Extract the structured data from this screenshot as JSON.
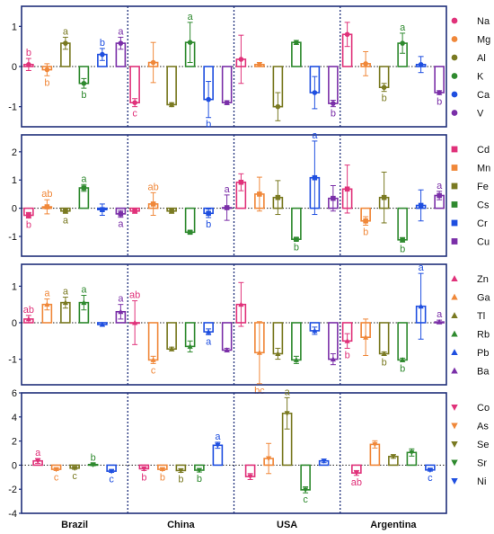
{
  "chart_data": [
    {
      "type": "bar",
      "categories": [
        "Brazil",
        "China",
        "USA",
        "Argentina"
      ],
      "ylim": [
        -1.5,
        1.5
      ],
      "yticks": [
        -1,
        0,
        1
      ],
      "legend": "right",
      "series": [
        {
          "name": "Na",
          "color": "#e0327a",
          "marker": "circle",
          "values": [
            0.05,
            -0.9,
            0.18,
            0.8
          ],
          "errors": [
            0.15,
            0.1,
            0.6,
            0.3
          ],
          "letters": [
            "b",
            "c",
            "",
            ""
          ]
        },
        {
          "name": "Mg",
          "color": "#f0883a",
          "marker": "circle",
          "values": [
            -0.08,
            0.1,
            0.05,
            0.07
          ],
          "errors": [
            0.15,
            0.5,
            0.05,
            0.3
          ],
          "letters": [
            "b",
            "",
            "",
            ""
          ]
        },
        {
          "name": "Al",
          "color": "#7a7a22",
          "marker": "circle",
          "values": [
            0.58,
            -0.95,
            -1.0,
            -0.52
          ],
          "errors": [
            0.15,
            0.05,
            0.35,
            0.1
          ],
          "letters": [
            "a",
            "",
            "",
            "b"
          ]
        },
        {
          "name": "K",
          "color": "#2f8a2f",
          "marker": "circle",
          "values": [
            -0.42,
            0.6,
            0.6,
            0.58
          ],
          "errors": [
            0.12,
            0.5,
            0.05,
            0.25
          ],
          "letters": [
            "b",
            "a",
            "",
            "a"
          ]
        },
        {
          "name": "Ca",
          "color": "#1f4fe0",
          "marker": "circle",
          "values": [
            0.3,
            -0.82,
            -0.65,
            0.05
          ],
          "errors": [
            0.15,
            0.45,
            0.4,
            0.2
          ],
          "letters": [
            "b",
            "b",
            "",
            ""
          ]
        },
        {
          "name": "V",
          "color": "#7a2fa8",
          "marker": "circle",
          "values": [
            0.58,
            -0.9,
            -0.92,
            -0.65
          ],
          "errors": [
            0.15,
            0.05,
            0.08,
            0.05
          ],
          "letters": [
            "a",
            "",
            "b",
            "b"
          ]
        }
      ]
    },
    {
      "type": "bar",
      "categories": [
        "Brazil",
        "China",
        "USA",
        "Argentina"
      ],
      "ylim": [
        -1.7,
        2.6
      ],
      "yticks": [
        -1,
        0,
        1,
        2
      ],
      "legend": "right",
      "series": [
        {
          "name": "Cd",
          "color": "#e0327a",
          "marker": "square",
          "values": [
            -0.25,
            -0.1,
            0.92,
            0.68
          ],
          "errors": [
            0.1,
            0.08,
            0.3,
            0.85
          ],
          "letters": [
            "b",
            "",
            "",
            ""
          ]
        },
        {
          "name": "Mn",
          "color": "#f0883a",
          "marker": "square",
          "values": [
            0.05,
            0.15,
            0.5,
            -0.45
          ],
          "errors": [
            0.25,
            0.4,
            0.6,
            0.15
          ],
          "letters": [
            "ab",
            "ab",
            "",
            "b"
          ]
        },
        {
          "name": "Fe",
          "color": "#7a7a22",
          "marker": "square",
          "values": [
            -0.1,
            -0.1,
            0.38,
            0.38
          ],
          "errors": [
            0.08,
            0.08,
            0.6,
            0.9
          ],
          "letters": [
            "a",
            "",
            "",
            ""
          ]
        },
        {
          "name": "Cs",
          "color": "#2f8a2f",
          "marker": "square",
          "values": [
            0.72,
            -0.85,
            -1.1,
            -1.12
          ],
          "errors": [
            0.12,
            0.05,
            0.05,
            0.08
          ],
          "letters": [
            "a",
            "",
            "b",
            "b"
          ]
        },
        {
          "name": "Cr",
          "color": "#1f4fe0",
          "marker": "square",
          "values": [
            -0.05,
            -0.18,
            1.08,
            0.1
          ],
          "errors": [
            0.2,
            0.15,
            1.3,
            0.55
          ],
          "letters": [
            "",
            "b",
            "a",
            ""
          ]
        },
        {
          "name": "Cu",
          "color": "#7a2fa8",
          "marker": "square",
          "values": [
            -0.2,
            0.02,
            0.35,
            0.45
          ],
          "errors": [
            0.12,
            0.45,
            0.45,
            0.15
          ],
          "letters": [
            "a",
            "a",
            "",
            "a"
          ]
        }
      ]
    },
    {
      "type": "bar",
      "categories": [
        "Brazil",
        "China",
        "USA",
        "Argentina"
      ],
      "ylim": [
        -1.7,
        1.6
      ],
      "yticks": [
        -1,
        0,
        1
      ],
      "legend": "right",
      "series": [
        {
          "name": "Zn",
          "color": "#e0327a",
          "marker": "triangle-up",
          "values": [
            0.1,
            0.0,
            0.5,
            -0.5
          ],
          "errors": [
            0.1,
            0.6,
            0.6,
            0.2
          ],
          "letters": [
            "ab",
            "ab",
            "",
            "b"
          ]
        },
        {
          "name": "Ga",
          "color": "#f0883a",
          "marker": "triangle-up",
          "values": [
            0.5,
            -1.02,
            -0.82,
            -0.4
          ],
          "errors": [
            0.15,
            0.1,
            0.85,
            0.5
          ],
          "letters": [
            "a",
            "c",
            "bc",
            ""
          ]
        },
        {
          "name": "Tl",
          "color": "#7a7a22",
          "marker": "triangle-up",
          "values": [
            0.55,
            -0.72,
            -0.85,
            -0.85
          ],
          "errors": [
            0.15,
            0.05,
            0.15,
            0.05
          ],
          "letters": [
            "a",
            "",
            "",
            "b"
          ]
        },
        {
          "name": "Rb",
          "color": "#2f8a2f",
          "marker": "triangle-up",
          "values": [
            0.55,
            -0.65,
            -1.02,
            -1.02
          ],
          "errors": [
            0.2,
            0.15,
            0.1,
            0.05
          ],
          "letters": [
            "a",
            "",
            "",
            "b"
          ]
        },
        {
          "name": "Pb",
          "color": "#1f4fe0",
          "marker": "triangle-up",
          "values": [
            -0.05,
            -0.25,
            -0.22,
            0.45
          ],
          "errors": [
            0.05,
            0.08,
            0.1,
            0.9
          ],
          "letters": [
            "",
            "a",
            "",
            "a"
          ]
        },
        {
          "name": "Ba",
          "color": "#7a2fa8",
          "marker": "triangle-up",
          "values": [
            0.3,
            -0.75,
            -1.0,
            0.02
          ],
          "errors": [
            0.2,
            0.05,
            0.15,
            0.05
          ],
          "letters": [
            "a",
            "",
            "",
            "a"
          ]
        }
      ]
    },
    {
      "type": "bar",
      "categories": [
        "Brazil",
        "China",
        "USA",
        "Argentina"
      ],
      "ylim": [
        -4,
        6
      ],
      "yticks": [
        -4,
        -2,
        0,
        2,
        4,
        6
      ],
      "legend": "right",
      "series": [
        {
          "name": "Co",
          "color": "#e0327a",
          "marker": "triangle-down",
          "values": [
            0.35,
            -0.3,
            -0.95,
            -0.65
          ],
          "errors": [
            0.2,
            0.15,
            0.25,
            0.2
          ],
          "letters": [
            "a",
            "b",
            "",
            "ab"
          ]
        },
        {
          "name": "As",
          "color": "#f0883a",
          "marker": "triangle-down",
          "values": [
            -0.35,
            -0.35,
            0.55,
            1.72
          ],
          "errors": [
            0.1,
            0.1,
            1.25,
            0.3
          ],
          "letters": [
            "c",
            "b",
            "",
            ""
          ]
        },
        {
          "name": "Se",
          "color": "#7a7a22",
          "marker": "triangle-down",
          "values": [
            -0.25,
            -0.45,
            4.3,
            0.72
          ],
          "errors": [
            0.1,
            0.15,
            1.3,
            0.15
          ],
          "letters": [
            "c",
            "b",
            "a",
            ""
          ]
        },
        {
          "name": "Sr",
          "color": "#2f8a2f",
          "marker": "triangle-down",
          "values": [
            0.05,
            -0.42,
            -2.05,
            1.05
          ],
          "errors": [
            0.1,
            0.15,
            0.25,
            0.3
          ],
          "letters": [
            "b",
            "b",
            "c",
            ""
          ]
        },
        {
          "name": "Ni",
          "color": "#1f4fe0",
          "marker": "triangle-down",
          "values": [
            -0.5,
            1.65,
            0.35,
            -0.4
          ],
          "errors": [
            0.1,
            0.25,
            0.15,
            0.1
          ],
          "letters": [
            "c",
            "a",
            "",
            "c"
          ]
        }
      ]
    }
  ]
}
